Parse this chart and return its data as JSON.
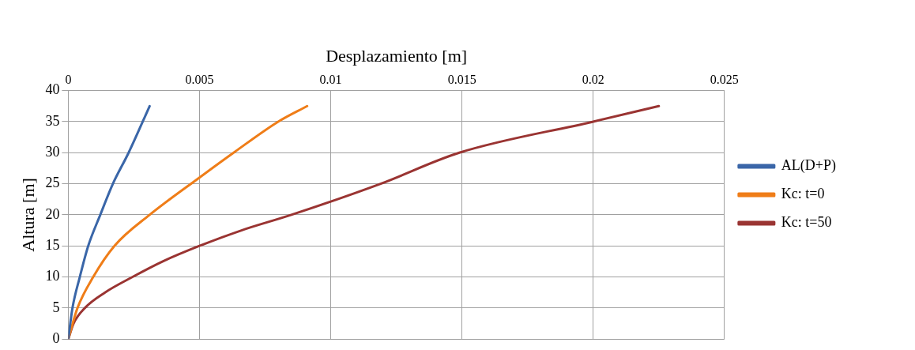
{
  "chart_data": {
    "type": "line",
    "xlabel": "Desplazamiento [m]",
    "ylabel": "Altura [m]",
    "xlim": [
      0,
      0.025
    ],
    "xticks": [
      0,
      0.005,
      0.01,
      0.015,
      0.02,
      0.025
    ],
    "ylim": [
      0,
      40
    ],
    "yticks": [
      0,
      5,
      10,
      15,
      20,
      25,
      30,
      35,
      40
    ],
    "grid": true,
    "legend": "right",
    "marker": "none",
    "line_style": "solid",
    "series": [
      {
        "name": "AL(D+P)",
        "color": "#3a66a8",
        "x": [
          0,
          0.00016,
          0.00044,
          0.00076,
          0.00122,
          0.0017,
          0.0023,
          0.0031
        ],
        "values": [
          0,
          5,
          10,
          15,
          20,
          25,
          30,
          37.5
        ]
      },
      {
        "name": "Kc: t=0",
        "color": "#ef7d18",
        "x": [
          0,
          0.00035,
          0.00095,
          0.00176,
          0.0031,
          0.005,
          0.0063,
          0.008,
          0.0091
        ],
        "values": [
          0,
          5,
          10,
          15,
          20,
          26,
          30,
          35,
          37.5
        ]
      },
      {
        "name": "Kc: t=50",
        "color": "#9a3432",
        "x": [
          0,
          0.0002,
          0.00063,
          0.0014,
          0.00245,
          0.0036,
          0.005,
          0.0066,
          0.0085,
          0.0119,
          0.0149,
          0.02,
          0.0225
        ],
        "values": [
          0,
          2.5,
          5,
          7.5,
          10,
          12.5,
          15,
          17.5,
          20,
          25,
          30,
          35,
          37.5
        ]
      }
    ]
  }
}
